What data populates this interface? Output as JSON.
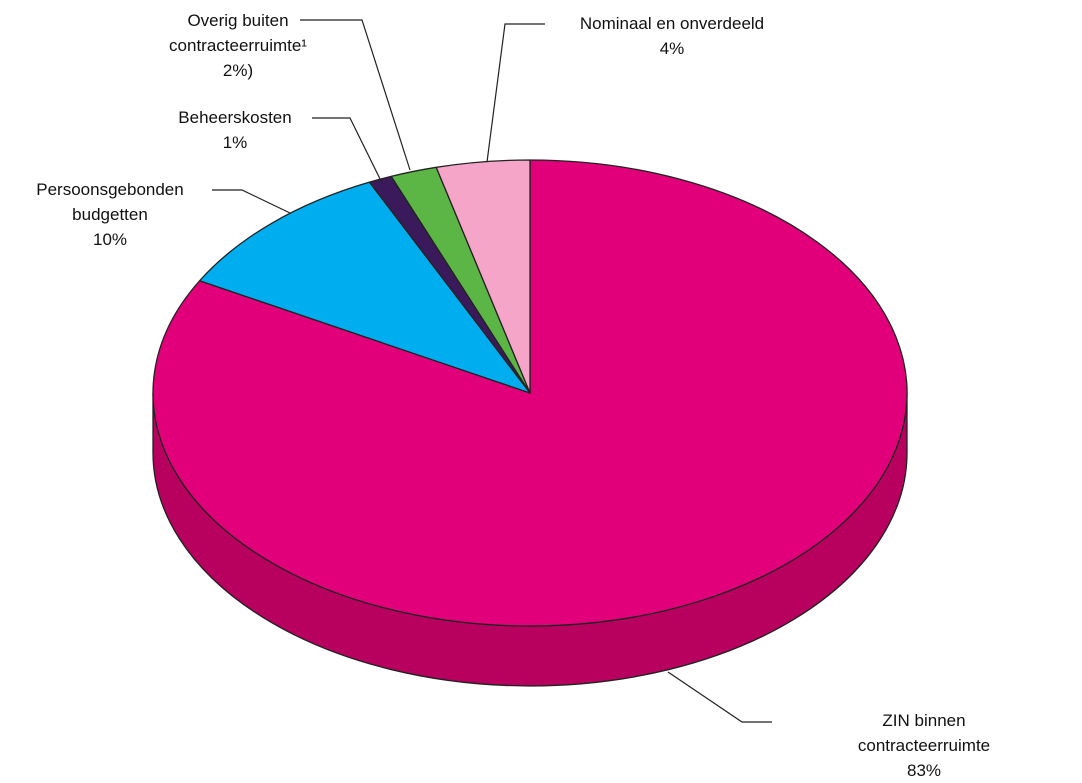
{
  "chart_data": {
    "type": "pie",
    "categories": [
      "ZIN binnen contracteerruimte",
      "Persoonsgebonden\nbudgetten",
      "Beheerskosten",
      "Overig buiten\ncontracteerruimte¹",
      "Nominaal en onverdeeld"
    ],
    "values": [
      83,
      10,
      1,
      2,
      4
    ],
    "value_labels": [
      "83%",
      "10%",
      "1%",
      "2%)",
      "4%"
    ],
    "colors": [
      "#e2007a",
      "#00aeef",
      "#3b1a5c",
      "#5cb646",
      "#f5a5c8"
    ],
    "side_color": "#b8005f"
  }
}
